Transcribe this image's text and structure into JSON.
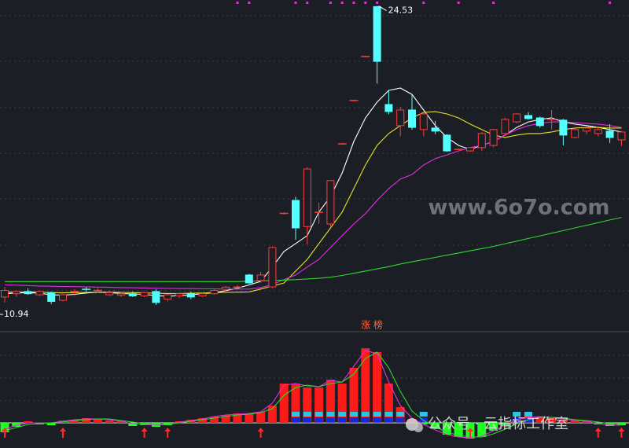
{
  "chart_data": [
    {
      "type": "candlestick",
      "ylim": [
        10.51,
        24.8
      ],
      "up_color": "#ff3b3b",
      "down_color": "#54ffff",
      "max_label": 24.53,
      "min_label": 10.94,
      "ohlc": [
        [
          11.3,
          11.75,
          11.05,
          11.6
        ],
        [
          11.45,
          11.6,
          11.3,
          11.55
        ],
        [
          11.55,
          11.7,
          11.4,
          11.45
        ],
        [
          11.4,
          11.6,
          11.35,
          11.55
        ],
        [
          11.5,
          11.55,
          10.98,
          11.1
        ],
        [
          11.15,
          11.45,
          11.1,
          11.4
        ],
        [
          11.55,
          11.65,
          11.35,
          11.6
        ],
        [
          11.65,
          11.75,
          11.55,
          11.62
        ],
        [
          11.6,
          11.7,
          11.5,
          11.62
        ],
        [
          11.4,
          11.6,
          11.35,
          11.5
        ],
        [
          11.38,
          11.55,
          11.3,
          11.45
        ],
        [
          11.45,
          11.55,
          11.3,
          11.35
        ],
        [
          11.35,
          11.55,
          11.3,
          11.5
        ],
        [
          11.55,
          11.65,
          10.94,
          11.05
        ],
        [
          11.2,
          11.45,
          11.1,
          11.4
        ],
        [
          11.35,
          11.5,
          11.25,
          11.45
        ],
        [
          11.45,
          11.55,
          11.2,
          11.3
        ],
        [
          11.35,
          11.5,
          11.3,
          11.45
        ],
        [
          11.45,
          11.65,
          11.4,
          11.6
        ],
        [
          11.65,
          11.8,
          11.55,
          11.75
        ],
        [
          11.75,
          11.85,
          11.65,
          11.8
        ],
        [
          12.3,
          12.35,
          11.9,
          11.94
        ],
        [
          12.05,
          12.45,
          11.95,
          12.3
        ],
        [
          11.76,
          13.6,
          11.7,
          13.55
        ],
        [
          15.1,
          15.15,
          15.05,
          15.12
        ],
        [
          15.69,
          15.85,
          13.9,
          14.44
        ],
        [
          14.5,
          17.2,
          13.7,
          17.12
        ],
        [
          15.15,
          15.6,
          14.62,
          15.16
        ],
        [
          14.62,
          16.6,
          14.5,
          16.59
        ],
        [
          18.26,
          18.3,
          18.22,
          18.26
        ],
        [
          20.23,
          20.27,
          20.2,
          20.23
        ],
        [
          22.23,
          22.27,
          22.2,
          22.23
        ],
        [
          24.5,
          24.53,
          21.0,
          22.01
        ],
        [
          20.05,
          20.7,
          19.6,
          19.73
        ],
        [
          19.09,
          19.95,
          18.6,
          19.8
        ],
        [
          19.8,
          20.5,
          18.9,
          19.01
        ],
        [
          18.91,
          19.7,
          18.6,
          19.62
        ],
        [
          18.98,
          19.3,
          18.7,
          18.84
        ],
        [
          18.66,
          18.7,
          17.9,
          17.94
        ],
        [
          18.01,
          18.05,
          17.98,
          18.01
        ],
        [
          17.94,
          18.1,
          17.9,
          18.09
        ],
        [
          18.09,
          18.8,
          17.95,
          18.73
        ],
        [
          18.19,
          18.95,
          18.1,
          18.91
        ],
        [
          18.73,
          19.45,
          18.7,
          19.37
        ],
        [
          19.26,
          19.65,
          19.2,
          19.62
        ],
        [
          19.55,
          19.7,
          19.35,
          19.41
        ],
        [
          19.44,
          19.5,
          19.0,
          19.09
        ],
        [
          19.37,
          19.8,
          18.91,
          19.38
        ],
        [
          19.34,
          19.4,
          18.19,
          18.66
        ],
        [
          18.55,
          18.95,
          18.5,
          18.91
        ],
        [
          18.84,
          19.05,
          18.7,
          18.98
        ],
        [
          18.73,
          19.0,
          18.6,
          18.91
        ],
        [
          18.84,
          19.16,
          18.3,
          18.55
        ],
        [
          18.44,
          18.85,
          18.16,
          18.8
        ]
      ],
      "series": [
        {
          "color": "#ffffff",
          "values": [
            11.45,
            11.48,
            11.5,
            11.47,
            11.4,
            11.38,
            11.42,
            11.48,
            11.52,
            11.5,
            11.46,
            11.44,
            11.42,
            11.36,
            11.34,
            11.36,
            11.4,
            11.45,
            11.5,
            11.59,
            11.7,
            11.85,
            12.01,
            12.66,
            13.37,
            13.73,
            14.09,
            15.16,
            15.87,
            16.94,
            18.37,
            19.44,
            20.16,
            20.69,
            20.8,
            20.51,
            19.8,
            19.09,
            18.55,
            18.19,
            18.01,
            18.19,
            18.37,
            18.66,
            19.01,
            19.26,
            19.37,
            19.44,
            19.26,
            19.16,
            19.09,
            19.01,
            18.91,
            18.8
          ]
        },
        {
          "color": "#e6e22a",
          "values": [
            11.52,
            11.52,
            11.53,
            11.52,
            11.5,
            11.49,
            11.5,
            11.51,
            11.52,
            11.52,
            11.51,
            11.5,
            11.49,
            11.47,
            11.46,
            11.46,
            11.47,
            11.48,
            11.5,
            11.51,
            11.52,
            11.53,
            11.66,
            11.8,
            11.94,
            12.48,
            13.01,
            13.73,
            14.44,
            15.16,
            16.23,
            17.3,
            18.19,
            18.73,
            19.09,
            19.44,
            19.69,
            19.73,
            19.62,
            19.44,
            19.16,
            18.91,
            18.66,
            18.55,
            18.66,
            18.73,
            18.73,
            18.8,
            18.91,
            18.98,
            19.01,
            19.01,
            18.98,
            18.98
          ]
        },
        {
          "color": "#e030e0",
          "values": [
            11.85,
            11.84,
            11.82,
            11.8,
            11.79,
            11.78,
            11.77,
            11.76,
            11.75,
            11.74,
            11.73,
            11.72,
            11.71,
            11.7,
            11.69,
            11.68,
            11.68,
            11.67,
            11.67,
            11.66,
            11.66,
            11.66,
            11.73,
            11.87,
            12.09,
            12.3,
            12.66,
            13.01,
            13.55,
            14.09,
            14.62,
            15.09,
            15.69,
            16.23,
            16.66,
            16.87,
            17.3,
            17.59,
            17.76,
            17.94,
            18.09,
            18.19,
            18.37,
            18.66,
            18.91,
            19.09,
            19.19,
            19.26,
            19.26,
            19.23,
            19.19,
            19.16,
            19.09,
            19.01
          ]
        },
        {
          "color": "#2ed82e",
          "values": [
            12.0,
            12.0,
            12.0,
            12.0,
            12.0,
            12.0,
            12.0,
            12.0,
            12.0,
            12.0,
            12.0,
            12.0,
            12.0,
            12.0,
            12.0,
            12.0,
            12.0,
            12.0,
            12.0,
            12.0,
            12.0,
            12.02,
            12.03,
            12.05,
            12.07,
            12.09,
            12.12,
            12.15,
            12.2,
            12.28,
            12.38,
            12.48,
            12.58,
            12.68,
            12.8,
            12.9,
            13.0,
            13.1,
            13.2,
            13.3,
            13.4,
            13.5,
            13.6,
            13.72,
            13.84,
            13.96,
            14.08,
            14.2,
            14.32,
            14.44,
            14.56,
            14.68,
            14.8,
            14.92
          ]
        }
      ],
      "top_dots": [
        20,
        21,
        25,
        26,
        28,
        29,
        30,
        31,
        32,
        36,
        39,
        42,
        52
      ],
      "dot_color": "#e030e0"
    },
    {
      "type": "bar",
      "title": "涨 榜",
      "ylim": [
        -32,
        118
      ],
      "up_color": "#ff1a1a",
      "down_color": "#22ff22",
      "values": [
        -12,
        -5,
        2,
        -2,
        -3,
        3,
        4,
        6,
        5,
        3,
        2,
        -4,
        -3,
        -5,
        -3,
        2,
        4,
        6,
        8,
        10,
        12,
        12,
        14,
        22,
        50,
        50,
        45,
        45,
        55,
        50,
        70,
        95,
        90,
        50,
        20,
        5,
        -2,
        -8,
        -15,
        -18,
        -20,
        -18,
        -10,
        -4,
        4,
        8,
        8,
        6,
        4,
        3,
        2,
        -2,
        -4,
        -3
      ],
      "series": [
        {
          "color": "#e030e0",
          "values": [
            -8,
            -3,
            0,
            0,
            0,
            2,
            4,
            5,
            5,
            4,
            2,
            -1,
            -2,
            -3,
            -2,
            1,
            3,
            5,
            8,
            10,
            11,
            12,
            14,
            25,
            48,
            50,
            47,
            46,
            54,
            52,
            72,
            92,
            88,
            52,
            22,
            6,
            -2,
            -9,
            -15,
            -18,
            -19,
            -17,
            -10,
            -3,
            4,
            7,
            8,
            7,
            5,
            3,
            2,
            -1,
            -3,
            -3
          ]
        },
        {
          "color": "#2ed82e",
          "values": [
            -10,
            -6,
            -2,
            -1,
            0,
            1,
            3,
            4,
            5,
            5,
            3,
            1,
            -1,
            -2,
            -2,
            0,
            2,
            4,
            6,
            8,
            10,
            11,
            13,
            18,
            35,
            45,
            48,
            46,
            50,
            52,
            62,
            82,
            90,
            70,
            40,
            15,
            3,
            -5,
            -12,
            -16,
            -18,
            -18,
            -14,
            -8,
            -1,
            4,
            7,
            7,
            6,
            4,
            3,
            1,
            -1,
            -2
          ]
        }
      ],
      "signal_bars": [
        25,
        26,
        27,
        28,
        29,
        30,
        31,
        32,
        33,
        34,
        36,
        44,
        45
      ],
      "arrows": [
        0,
        5,
        12,
        14,
        22,
        40,
        51,
        53
      ]
    }
  ],
  "watermark": "www.6o7o.com",
  "caption": "公众号 · 云指标工作室"
}
